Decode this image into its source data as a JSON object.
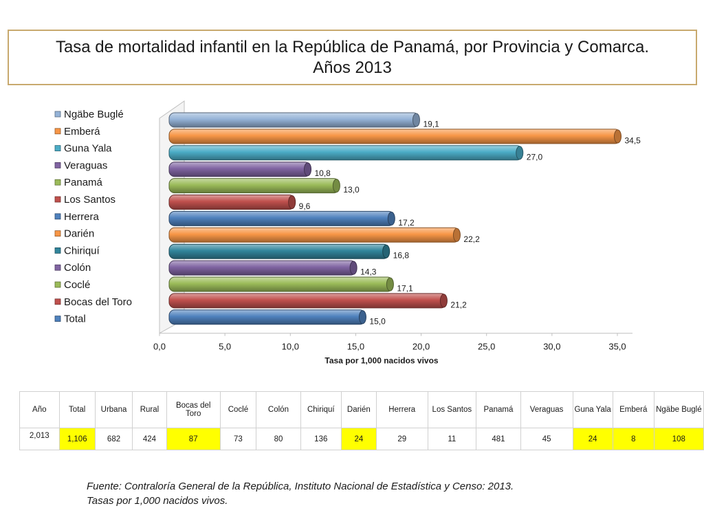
{
  "title": {
    "line1": "Tasa de mortalidad infantil en la República de Panamá, por Provincia y Comarca.",
    "line2": "Años 2013"
  },
  "chart_data": {
    "type": "bar",
    "orientation": "horizontal",
    "categories": [
      "Total",
      "Bocas del Toro",
      "Coclé",
      "Colón",
      "Chiriquí",
      "Darién",
      "Herrera",
      "Los Santos",
      "Panamá",
      "Veraguas",
      "Guna Yala",
      "Emberá",
      "Ngäbe Buglé"
    ],
    "values": [
      15.0,
      21.2,
      17.1,
      14.3,
      16.8,
      22.2,
      17.2,
      9.6,
      13.0,
      10.8,
      27.0,
      34.5,
      19.1
    ],
    "value_labels": [
      "15,0",
      "21,2",
      "17,1",
      "14,3",
      "16,8",
      "22,2",
      "17,2",
      "9,6",
      "13,0",
      "10,8",
      "27,0",
      "34,5",
      "19,1"
    ],
    "colors": [
      "#4f81bd",
      "#c0504d",
      "#9bbb59",
      "#8064a2",
      "#31859c",
      "#f79646",
      "#4f81bd",
      "#c0504d",
      "#9bbb59",
      "#8064a2",
      "#4bacc6",
      "#f79646",
      "#95b3d7"
    ],
    "legend_order": [
      "Ngäbe Buglé",
      "Emberá",
      "Guna Yala",
      "Veraguas",
      "Panamá",
      "Los Santos",
      "Herrera",
      "Darién",
      "Chiriquí",
      "Colón",
      "Coclé",
      "Bocas del Toro",
      "Total"
    ],
    "legend_position": "left",
    "xlabel": "Tasa por 1,000 nacidos vivos",
    "xlim": [
      0,
      35
    ],
    "xticks": [
      0,
      5,
      10,
      15,
      20,
      25,
      30,
      35
    ],
    "xtick_labels": [
      "0,0",
      "5,0",
      "10,0",
      "15,0",
      "20,0",
      "25,0",
      "30,0",
      "35,0"
    ]
  },
  "table": {
    "headers": [
      "Año",
      "Total",
      "Urbana",
      "Rural",
      "Bocas del Toro",
      "Coclé",
      "Colón",
      "Chiriquí",
      "Darién",
      "Herrera",
      "Los Santos",
      "Panamá",
      "Veraguas",
      "Guna Yala",
      "Emberá",
      "Ngäbe Buglé"
    ],
    "row": [
      "2,013",
      "1,106",
      "682",
      "424",
      "87",
      "73",
      "80",
      "136",
      "24",
      "29",
      "11",
      "481",
      "45",
      "24",
      "8",
      "108"
    ],
    "highlight_color": "#ffff00"
  },
  "source": {
    "line1": "Fuente: Contraloría General de la República, Instituto Nacional de Estadística y Censo: 2013.",
    "line2": "Tasas por 1,000 nacidos vivos."
  }
}
